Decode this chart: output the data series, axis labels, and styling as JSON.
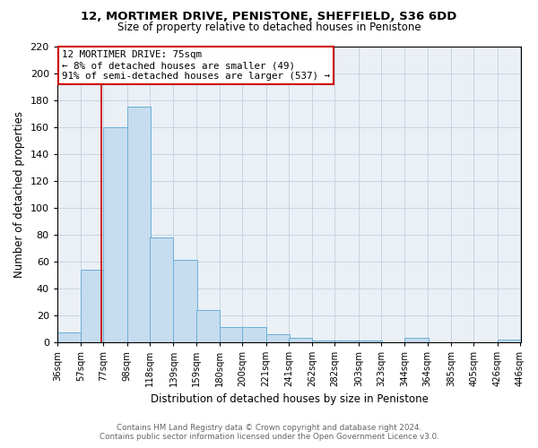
{
  "title1": "12, MORTIMER DRIVE, PENISTONE, SHEFFIELD, S36 6DD",
  "title2": "Size of property relative to detached houses in Penistone",
  "xlabel": "Distribution of detached houses by size in Penistone",
  "ylabel": "Number of detached properties",
  "bar_left_edges": [
    36,
    57,
    77,
    98,
    118,
    139,
    159,
    180,
    200,
    221,
    241,
    262,
    282,
    303,
    323,
    344,
    364,
    385,
    405,
    426
  ],
  "bar_heights": [
    7,
    54,
    160,
    175,
    78,
    61,
    24,
    11,
    11,
    6,
    3,
    1,
    1,
    1,
    0,
    3,
    0,
    0,
    0,
    2
  ],
  "bin_width": 21,
  "bar_color": "#c6dcef",
  "bar_edge_color": "#6aafd6",
  "property_value": 75,
  "vline_color": "#cc0000",
  "annotation_line1": "12 MORTIMER DRIVE: 75sqm",
  "annotation_line2": "← 8% of detached houses are smaller (49)",
  "annotation_line3": "91% of semi-detached houses are larger (537) →",
  "box_edge_color": "#cc0000",
  "box_face_color": "white",
  "ylim": [
    0,
    220
  ],
  "yticks": [
    0,
    20,
    40,
    60,
    80,
    100,
    120,
    140,
    160,
    180,
    200,
    220
  ],
  "xtick_labels": [
    "36sqm",
    "57sqm",
    "77sqm",
    "98sqm",
    "118sqm",
    "139sqm",
    "159sqm",
    "180sqm",
    "200sqm",
    "221sqm",
    "241sqm",
    "262sqm",
    "282sqm",
    "303sqm",
    "323sqm",
    "344sqm",
    "364sqm",
    "385sqm",
    "405sqm",
    "426sqm",
    "446sqm"
  ],
  "xtick_positions": [
    36,
    57,
    77,
    98,
    118,
    139,
    159,
    180,
    200,
    221,
    241,
    262,
    282,
    303,
    323,
    344,
    364,
    385,
    405,
    426,
    446
  ],
  "footer_line1": "Contains HM Land Registry data © Crown copyright and database right 2024.",
  "footer_line2": "Contains public sector information licensed under the Open Government Licence v3.0.",
  "background_color": "#eaf0f6",
  "grid_color": "#c8d4e0"
}
